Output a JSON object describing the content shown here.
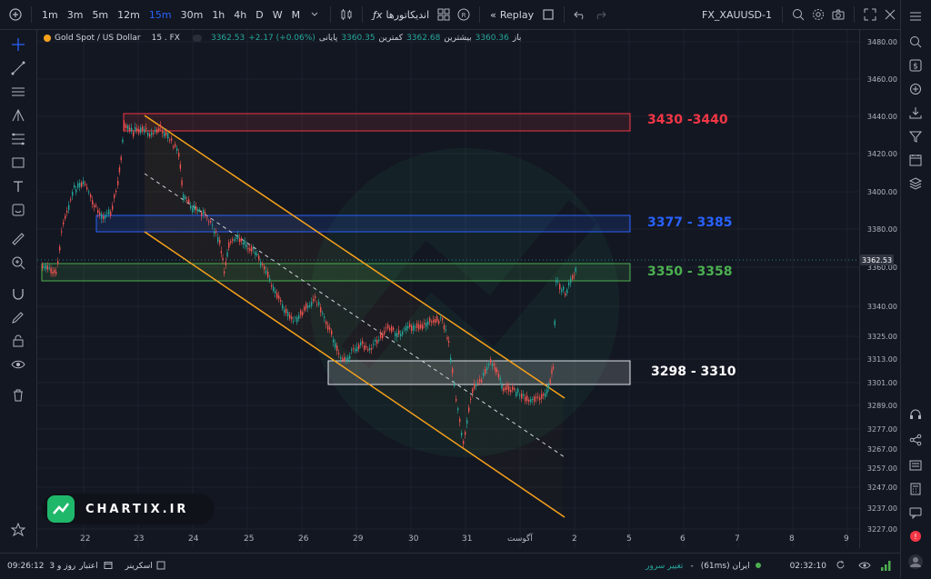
{
  "toolbar": {
    "intervals": [
      "1m",
      "3m",
      "5m",
      "12m",
      "15m",
      "30m",
      "1h",
      "4h",
      "D",
      "W",
      "M"
    ],
    "active_interval": "15m",
    "indicators_label": "اندیکاتورها",
    "replay_label": "Replay",
    "symbol": "FX_XAUUSD-1"
  },
  "legend": {
    "name": "Gold Spot / US Dollar",
    "interval_source": "15 . FX",
    "open_label": "باز",
    "open_value": "3360.36",
    "high_label": "بیشترین",
    "high_value": "3362.68",
    "low_label": "کمترین",
    "low_value": "3360.35",
    "close_label": "پایانی",
    "close_value": "3362.53",
    "change": "+2.17 (+0.06%)"
  },
  "zones": [
    {
      "label": "3430 -3440",
      "color": "#f23645"
    },
    {
      "label": "3377 - 3385",
      "color": "#2962ff"
    },
    {
      "label": "3350 - 3358",
      "color": "#4caf50"
    },
    {
      "label": "3298 - 3310",
      "color": "#ffffff"
    }
  ],
  "price_axis": [
    "3480.00",
    "3460.00",
    "3440.00",
    "3420.00",
    "3400.00",
    "3380.00",
    "3360.00",
    "3340.00",
    "3325.00",
    "3313.00",
    "3301.00",
    "3289.00",
    "3277.00",
    "3267.00",
    "3257.00",
    "3247.00",
    "3237.00",
    "3227.00"
  ],
  "last_price": "3362.53",
  "time_axis": [
    "22",
    "23",
    "24",
    "25",
    "26",
    "29",
    "30",
    "31",
    "آگوست",
    "2",
    "5",
    "6",
    "7",
    "8",
    "9"
  ],
  "logo_text": "CHARTIX.IR",
  "bottom": {
    "datetime": "09:26:12",
    "credit": "3 روز و",
    "credit_label": "اعتبار",
    "screener": "اسکرینر",
    "server_change": "تغییر سرور",
    "ping": "(61ms) ایران",
    "clock": "02:32:10"
  },
  "colors": {
    "background": "#131722",
    "up": "#26a69a",
    "down": "#ef5350",
    "channel": "#f7a21b"
  }
}
